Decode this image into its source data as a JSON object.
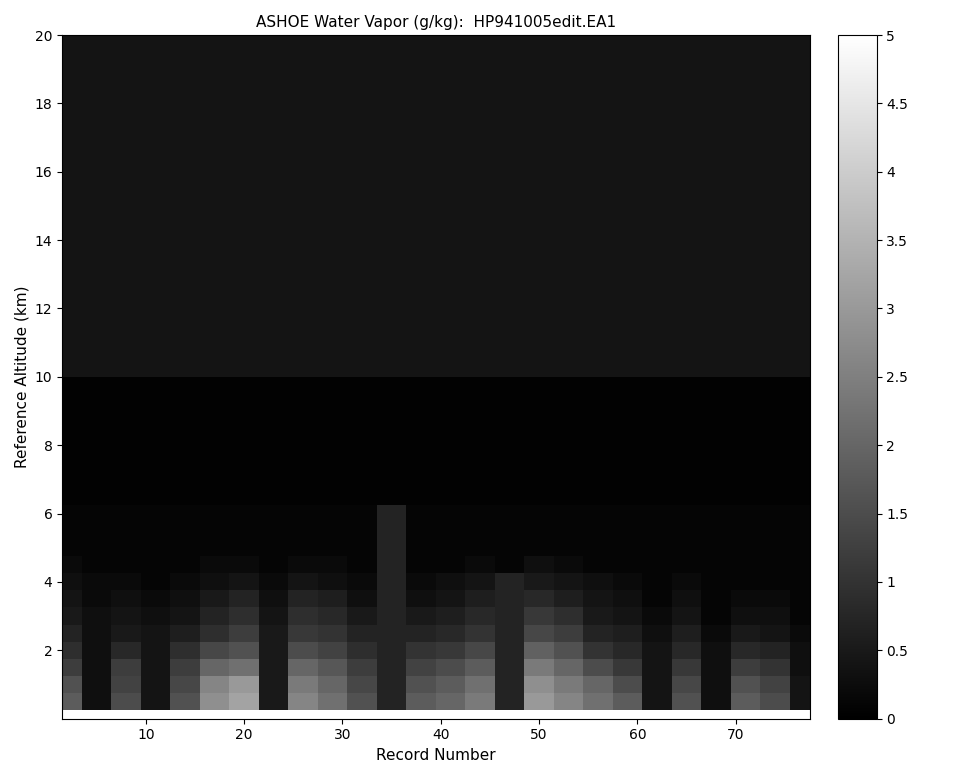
{
  "chart_data": {
    "type": "heatmap",
    "title": "ASHOE Water Vapor (g/kg):  HP941005edit.EA1",
    "x_label": "Record Number",
    "y_label": "Reference Altitude (km)",
    "x": [
      2,
      5,
      8,
      11,
      14,
      17,
      20,
      23,
      26,
      29,
      32,
      35,
      38,
      41,
      44,
      47,
      50,
      53,
      56,
      59,
      62,
      65,
      68,
      71,
      74,
      77
    ],
    "y": [
      0.5,
      1,
      1.5,
      2,
      2.5,
      3,
      3.5,
      4,
      4.5,
      5,
      5.5,
      7,
      9,
      11,
      13,
      15,
      17,
      19
    ],
    "cells": [
      [
        1.8,
        0.3,
        1.5,
        0.4,
        1.6,
        2.8,
        3.2,
        0.5,
        2.6,
        2.2,
        1.6,
        0.7,
        1.8,
        2.0,
        2.4,
        0.7,
        3.0,
        2.6,
        2.2,
        1.8,
        0.4,
        1.6,
        0.3,
        1.8,
        1.5,
        0.4
      ],
      [
        1.6,
        0.3,
        1.3,
        0.4,
        1.4,
        2.6,
        3.0,
        0.5,
        2.4,
        2.0,
        1.4,
        0.7,
        1.6,
        1.8,
        2.2,
        0.7,
        2.8,
        2.4,
        2.0,
        1.5,
        0.4,
        1.4,
        0.3,
        1.6,
        1.3,
        0.4
      ],
      [
        1.2,
        0.3,
        1.2,
        0.4,
        1.2,
        2.0,
        2.2,
        0.5,
        2.0,
        1.7,
        1.2,
        0.7,
        1.3,
        1.5,
        1.8,
        0.7,
        2.4,
        2.0,
        1.5,
        1.1,
        0.4,
        1.1,
        0.3,
        1.2,
        1.0,
        0.3
      ],
      [
        0.9,
        0.3,
        0.8,
        0.4,
        0.9,
        1.4,
        1.6,
        0.5,
        1.5,
        1.3,
        0.9,
        0.7,
        1.0,
        1.1,
        1.4,
        0.7,
        1.9,
        1.6,
        1.0,
        0.8,
        0.4,
        0.8,
        0.3,
        0.8,
        0.7,
        0.3
      ],
      [
        0.7,
        0.3,
        0.5,
        0.4,
        0.6,
        0.9,
        1.2,
        0.5,
        1.1,
        1.0,
        0.7,
        0.7,
        0.7,
        0.8,
        1.0,
        0.7,
        1.4,
        1.2,
        0.7,
        0.6,
        0.3,
        0.6,
        0.2,
        0.5,
        0.4,
        0.2
      ],
      [
        0.5,
        0.3,
        0.4,
        0.3,
        0.4,
        0.7,
        0.9,
        0.4,
        0.9,
        0.8,
        0.5,
        0.7,
        0.5,
        0.6,
        0.8,
        0.7,
        1.1,
        0.9,
        0.5,
        0.4,
        0.2,
        0.4,
        0.1,
        0.3,
        0.3,
        0.1
      ],
      [
        0.4,
        0.2,
        0.3,
        0.2,
        0.3,
        0.5,
        0.7,
        0.3,
        0.7,
        0.6,
        0.3,
        0.7,
        0.3,
        0.4,
        0.6,
        0.7,
        0.8,
        0.6,
        0.4,
        0.3,
        0.1,
        0.3,
        0.1,
        0.2,
        0.2,
        0.1
      ],
      [
        0.3,
        0.2,
        0.2,
        0.1,
        0.2,
        0.3,
        0.4,
        0.2,
        0.4,
        0.3,
        0.2,
        0.7,
        0.2,
        0.3,
        0.4,
        0.7,
        0.5,
        0.4,
        0.3,
        0.2,
        0.1,
        0.2,
        0.1,
        0.1,
        0.1,
        0.1
      ],
      [
        0.2,
        0.1,
        0.1,
        0.1,
        0.1,
        0.2,
        0.2,
        0.1,
        0.2,
        0.2,
        0.1,
        0.7,
        0.1,
        0.1,
        0.2,
        0.1,
        0.3,
        0.2,
        0.1,
        0.1,
        0.1,
        0.1,
        0.1,
        0.1,
        0.1,
        0.1
      ],
      [
        0.1,
        0.1,
        0.1,
        0.1,
        0.1,
        0.1,
        0.1,
        0.1,
        0.1,
        0.1,
        0.1,
        0.7,
        0.1,
        0.1,
        0.1,
        0.1,
        0.1,
        0.1,
        0.1,
        0.1,
        0.1,
        0.1,
        0.1,
        0.1,
        0.1,
        0.1
      ],
      [
        0.1,
        0.1,
        0.1,
        0.1,
        0.1,
        0.1,
        0.1,
        0.1,
        0.1,
        0.1,
        0.1,
        0.7,
        0.1,
        0.1,
        0.1,
        0.1,
        0.1,
        0.1,
        0.1,
        0.1,
        0.1,
        0.1,
        0.1,
        0.1,
        0.1,
        0.1
      ],
      [
        0.05,
        0.05,
        0.05,
        0.05,
        0.05,
        0.05,
        0.05,
        0.05,
        0.05,
        0.05,
        0.05,
        0.05,
        0.05,
        0.05,
        0.05,
        0.05,
        0.05,
        0.05,
        0.05,
        0.05,
        0.05,
        0.05,
        0.05,
        0.05,
        0.05,
        0.05
      ],
      [
        0.05,
        0.05,
        0.05,
        0.05,
        0.05,
        0.05,
        0.05,
        0.05,
        0.05,
        0.05,
        0.05,
        0.05,
        0.05,
        0.05,
        0.05,
        0.05,
        0.05,
        0.05,
        0.05,
        0.05,
        0.05,
        0.05,
        0.05,
        0.05,
        0.05,
        0.05
      ],
      [
        0.4,
        0.4,
        0.4,
        0.4,
        0.4,
        0.4,
        0.4,
        0.4,
        0.4,
        0.4,
        0.4,
        0.4,
        0.4,
        0.4,
        0.4,
        0.4,
        0.4,
        0.4,
        0.4,
        0.4,
        0.4,
        0.4,
        0.4,
        0.4,
        0.4,
        0.4
      ],
      [
        0.4,
        0.4,
        0.4,
        0.4,
        0.4,
        0.4,
        0.4,
        0.4,
        0.4,
        0.4,
        0.4,
        0.4,
        0.4,
        0.4,
        0.4,
        0.4,
        0.4,
        0.4,
        0.4,
        0.4,
        0.4,
        0.4,
        0.4,
        0.4,
        0.4,
        0.4
      ],
      [
        0.4,
        0.4,
        0.4,
        0.4,
        0.4,
        0.4,
        0.4,
        0.4,
        0.4,
        0.4,
        0.4,
        0.4,
        0.4,
        0.4,
        0.4,
        0.4,
        0.4,
        0.4,
        0.4,
        0.4,
        0.4,
        0.4,
        0.4,
        0.4,
        0.4,
        0.4
      ],
      [
        0.4,
        0.4,
        0.4,
        0.4,
        0.4,
        0.4,
        0.4,
        0.4,
        0.4,
        0.4,
        0.4,
        0.4,
        0.4,
        0.4,
        0.4,
        0.4,
        0.4,
        0.4,
        0.4,
        0.4,
        0.4,
        0.4,
        0.4,
        0.4,
        0.4,
        0.4
      ],
      [
        0.4,
        0.4,
        0.4,
        0.4,
        0.4,
        0.4,
        0.4,
        0.4,
        0.4,
        0.4,
        0.4,
        0.4,
        0.4,
        0.4,
        0.4,
        0.4,
        0.4,
        0.4,
        0.4,
        0.4,
        0.4,
        0.4,
        0.4,
        0.4,
        0.4,
        0.4
      ]
    ],
    "xlim": [
      1.5,
      77.5
    ],
    "xticks": [
      10,
      20,
      30,
      40,
      50,
      60,
      70
    ],
    "ylim": [
      0,
      20
    ],
    "yticks": [
      2,
      4,
      6,
      8,
      10,
      12,
      14,
      16,
      18,
      20
    ],
    "colorbar_range": [
      0,
      5
    ],
    "colorbar_ticks": [
      0,
      0.5,
      1,
      1.5,
      2,
      2.5,
      3,
      3.5,
      4,
      4.5,
      5
    ],
    "color": "gray"
  }
}
